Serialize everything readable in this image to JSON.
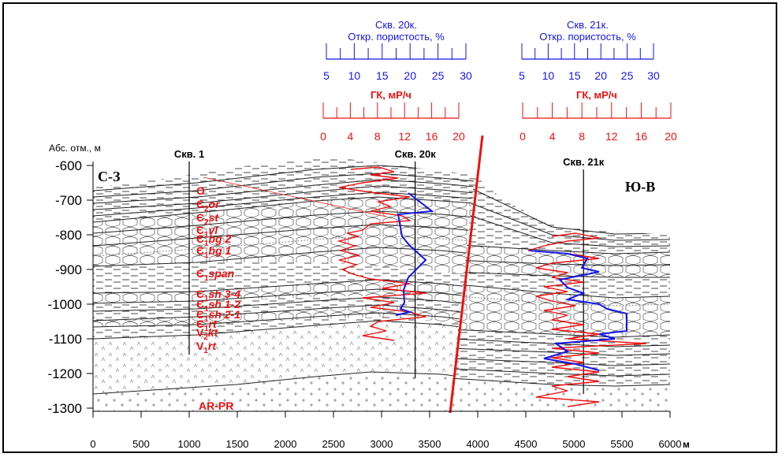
{
  "section": {
    "elevation_axis_label": "Абс. отм., м",
    "y_ticks": [
      "-600",
      "-700",
      "-800",
      "-900",
      "-1000",
      "-1100",
      "-1200",
      "-1300"
    ],
    "x_ticks": [
      "0",
      "500",
      "1000",
      "1500",
      "2000",
      "2500",
      "3000",
      "3500",
      "4000",
      "4500",
      "5000",
      "5500",
      "6000"
    ],
    "x_unit": "м",
    "direction_left": "С-З",
    "direction_right": "Ю-В"
  },
  "wells": [
    {
      "name": "Скв. 1",
      "x_m": 1000
    },
    {
      "name": "Скв. 20к",
      "x_m": 3350
    },
    {
      "name": "Скв. 21к",
      "x_m": 5100
    }
  ],
  "porosity_scales": [
    {
      "title_line1": "Скв. 20к.",
      "title_line2": "Откр. пористость, %",
      "ticks": [
        "5",
        "10",
        "15",
        "20",
        "25",
        "30"
      ],
      "color": "#1515e6"
    },
    {
      "title_line1": "Скв. 21к.",
      "title_line2": "Откр. пористость, %",
      "ticks": [
        "5",
        "10",
        "15",
        "20",
        "25",
        "30"
      ],
      "color": "#1515e6"
    }
  ],
  "gamma_scales": [
    {
      "title": "ГК, мР/ч",
      "ticks": [
        "0",
        "4",
        "8",
        "12",
        "16",
        "20"
      ],
      "color": "#ee1111"
    },
    {
      "title": "ГК, мР/ч",
      "ticks": [
        "0",
        "4",
        "8",
        "12",
        "16",
        "20"
      ],
      "color": "#ee1111"
    }
  ],
  "strata_labels": [
    {
      "base": "O",
      "sub": "",
      "suffix": ""
    },
    {
      "base": "Є",
      "sub": "2",
      "suffix": "or"
    },
    {
      "base": "Є",
      "sub": "2",
      "suffix": "st"
    },
    {
      "base": "Є",
      "sub": "1",
      "suffix": "vl"
    },
    {
      "base": "Є",
      "sub": "1",
      "suffix": "bg 2"
    },
    {
      "base": "Є",
      "sub": "1",
      "suffix": "bg 1"
    },
    {
      "base": "Є",
      "sub": "1",
      "suffix": "span"
    },
    {
      "base": "Є",
      "sub": "1",
      "suffix": "sh 3-4"
    },
    {
      "base": "Є",
      "sub": "1",
      "suffix": "sh 1-2"
    },
    {
      "base": "Є",
      "sub": "1",
      "suffix": "sh 2-1"
    },
    {
      "base": "Є",
      "sub": "1",
      "suffix": "rt"
    },
    {
      "base": "V",
      "sub": "2",
      "suffix": "kt"
    },
    {
      "base": "V",
      "sub": "1",
      "suffix": "rt"
    },
    {
      "base": "AR-PR",
      "sub": "",
      "suffix": ""
    }
  ],
  "colors": {
    "porosity": "#1515e6",
    "gamma": "#ee1111",
    "fault": "#ee1111"
  }
}
